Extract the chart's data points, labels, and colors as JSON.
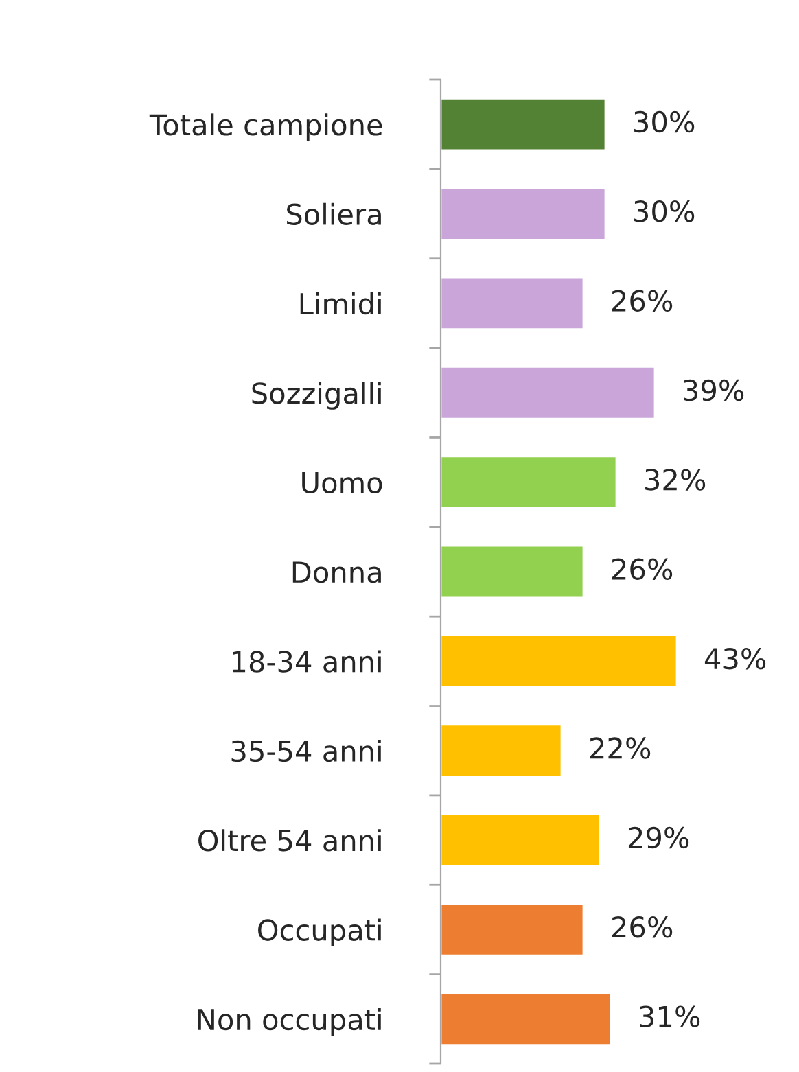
{
  "chart_data": {
    "type": "bar",
    "orientation": "horizontal",
    "categories": [
      "Totale campione",
      "Soliera",
      "Limidi",
      "Sozzigalli",
      "Uomo",
      "Donna",
      "18-34 anni",
      "35-54 anni",
      "Oltre 54 anni",
      "Occupati",
      "Non occupati"
    ],
    "values": [
      30,
      30,
      26,
      39,
      32,
      26,
      43,
      22,
      29,
      26,
      31
    ],
    "value_labels": [
      "30%",
      "30%",
      "26%",
      "39%",
      "32%",
      "26%",
      "43%",
      "22%",
      "29%",
      "26%",
      "31%"
    ],
    "colors": [
      "#548235",
      "#c9a5d9",
      "#c9a5d9",
      "#c9a5d9",
      "#92d050",
      "#92d050",
      "#ffc000",
      "#ffc000",
      "#ffc000",
      "#ed7d31",
      "#ed7d31"
    ],
    "tick_labels": "y",
    "grid": false,
    "legend": false
  }
}
